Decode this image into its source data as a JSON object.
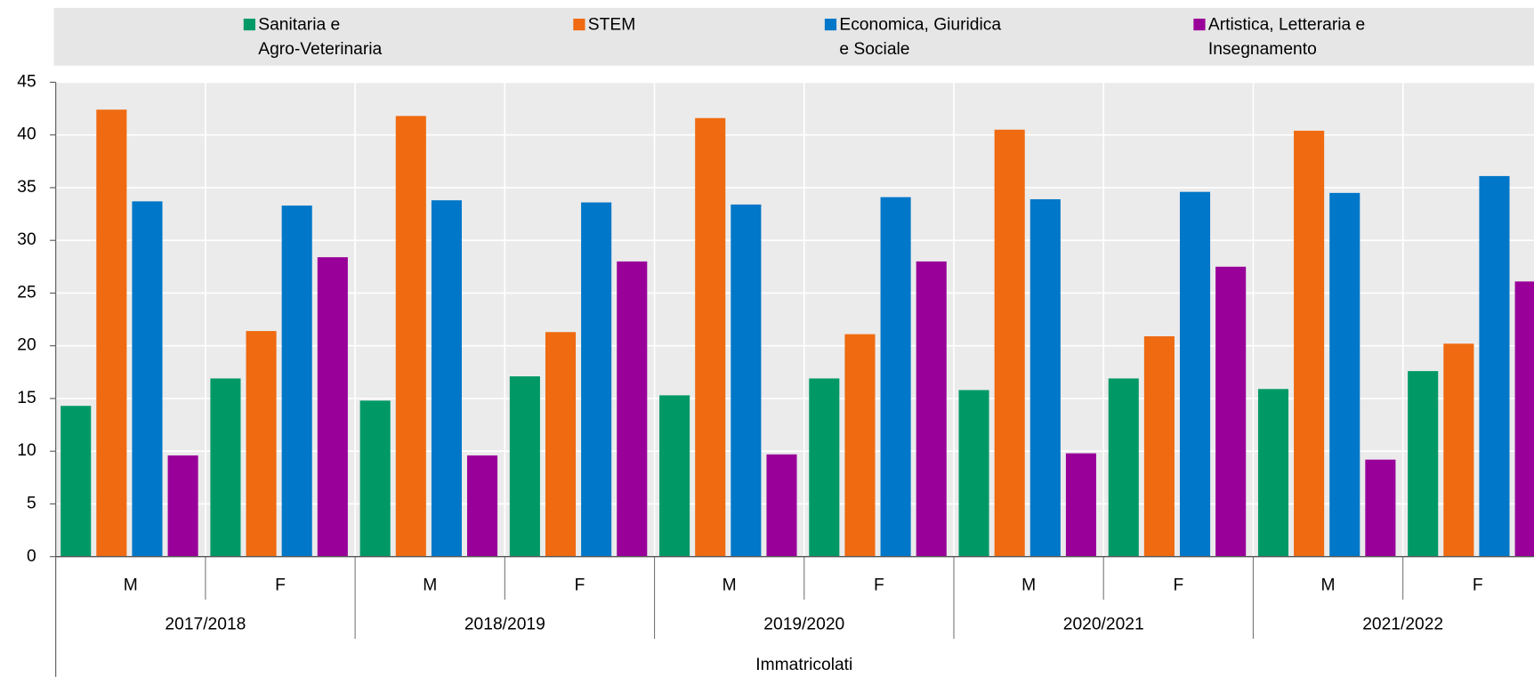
{
  "chart_data": {
    "type": "bar",
    "x_label": "Immatricolati",
    "categories": [
      "M",
      "F",
      "M",
      "F",
      "M",
      "F",
      "M",
      "F",
      "M",
      "F"
    ],
    "groups": [
      "2017/2018",
      "2018/2019",
      "2019/2020",
      "2020/2021",
      "2021/2022"
    ],
    "series": [
      {
        "name": "Sanitaria e\nAgro-Veterinaria",
        "color": "#009966",
        "values": [
          14.3,
          16.9,
          14.8,
          17.1,
          15.3,
          16.9,
          15.8,
          16.9,
          15.9,
          17.6
        ]
      },
      {
        "name": "STEM",
        "color": "#ef6a10",
        "values": [
          42.4,
          21.4,
          41.8,
          21.3,
          41.6,
          21.1,
          40.5,
          20.9,
          40.4,
          20.2
        ]
      },
      {
        "name": "Economica, Giuridica\ne Sociale",
        "color": "#0077c8",
        "values": [
          33.7,
          33.3,
          33.8,
          33.6,
          33.4,
          34.1,
          33.9,
          34.6,
          34.5,
          36.1
        ]
      },
      {
        "name": "Artistica, Letteraria e\nInsegnamento",
        "color": "#990099",
        "values": [
          9.6,
          28.4,
          9.6,
          28.0,
          9.7,
          28.0,
          9.8,
          27.5,
          9.2,
          26.1
        ]
      }
    ],
    "ylim": [
      0,
      45
    ],
    "yticks": [
      0,
      5,
      10,
      15,
      20,
      25,
      30,
      35,
      40,
      45
    ],
    "grid": true
  }
}
